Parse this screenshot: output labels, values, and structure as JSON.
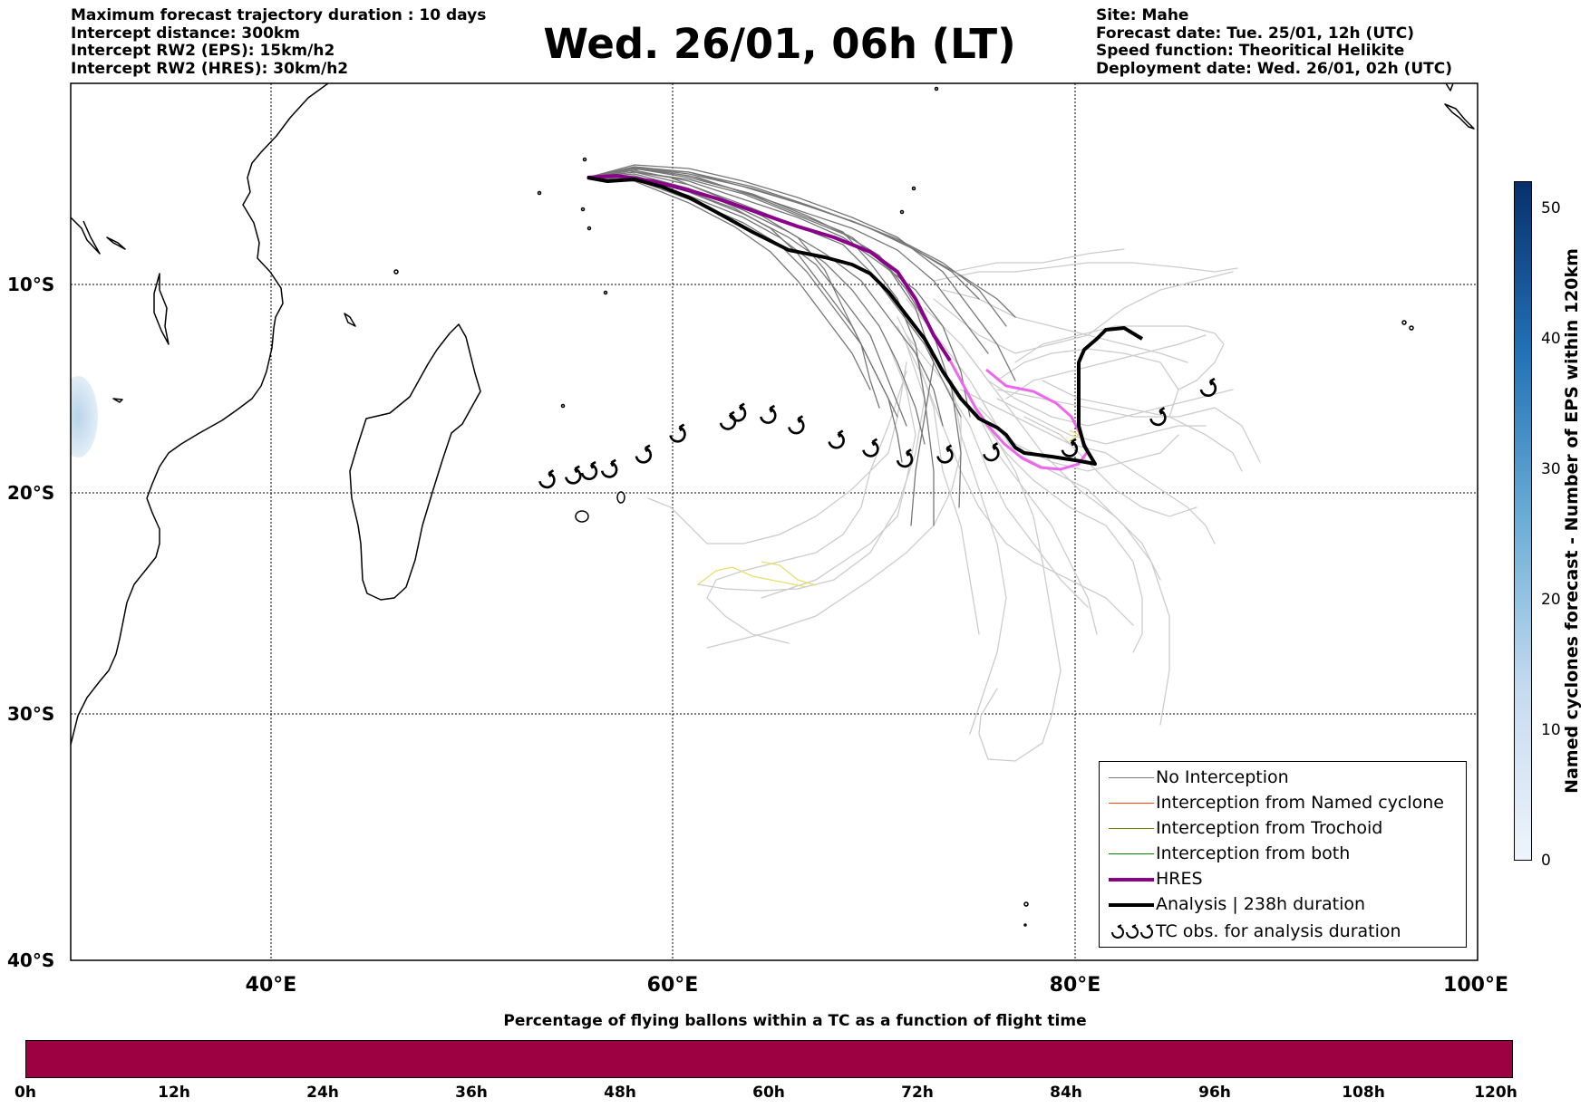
{
  "header": {
    "left_lines": [
      "Maximum forecast trajectory duration : 10 days",
      "Intercept distance: 300km",
      "Intercept RW2 (EPS):  15km/h2",
      "Intercept RW2 (HRES): 30km/h2"
    ],
    "title": "Wed. 26/01, 06h (LT)",
    "right_lines": [
      "Site: Mahe",
      "Forecast date: Tue. 25/01, 12h (UTC)",
      "Speed function: Theoritical Helikite",
      "Deployment date: Wed. 26/01, 02h (UTC)"
    ]
  },
  "map": {
    "extent": {
      "lon": [
        30,
        100
      ],
      "lat": [
        -1,
        -40
      ]
    },
    "lat_labels": [
      "10°S",
      "20°S",
      "30°S",
      "40°S"
    ],
    "lon_labels": [
      "40°E",
      "60°E",
      "80°E",
      "100°E"
    ],
    "hres_color": "#8b008b",
    "analysis_color": "#000000",
    "hres_tail_color": "#ee66ee",
    "eps_color_no_intercept": "#777777",
    "eps_color_light": "#cccccc",
    "tc_observations": [
      [
        53.7,
        -19.4
      ],
      [
        55.0,
        -19.2
      ],
      [
        55.8,
        -19.0
      ],
      [
        56.8,
        -18.9
      ],
      [
        58.5,
        -18.2
      ],
      [
        60.2,
        -17.2
      ],
      [
        62.7,
        -16.6
      ],
      [
        63.2,
        -16.2
      ],
      [
        64.7,
        -16.3
      ],
      [
        66.1,
        -16.8
      ],
      [
        68.1,
        -17.5
      ],
      [
        69.8,
        -17.9
      ],
      [
        71.5,
        -18.4
      ],
      [
        73.5,
        -18.2
      ],
      [
        75.8,
        -18.1
      ],
      [
        79.7,
        -17.9
      ],
      [
        84.1,
        -16.4
      ],
      [
        86.6,
        -15.0
      ]
    ]
  },
  "legend": {
    "items": [
      {
        "label": "No Interception",
        "color": "#777777",
        "width": 1.5
      },
      {
        "label": "Interception from Named cyclone",
        "color": "#ff4500",
        "width": 1.5
      },
      {
        "label": "Interception from Trochoid",
        "color": "#808000",
        "width": 1.5
      },
      {
        "label": "Interception from both",
        "color": "#008000",
        "width": 1.5
      },
      {
        "label": "HRES",
        "color": "#8b008b",
        "width": 4
      },
      {
        "label": "Analysis | 238h duration",
        "color": "#000000",
        "width": 4
      },
      {
        "label": "TC obs. for analysis duration",
        "color": "#000000",
        "width": 0
      }
    ]
  },
  "colorbar_right": {
    "label": "Named cyclones forecast - Number of EPS within 120km",
    "ticks": [
      "0",
      "10",
      "20",
      "30",
      "40",
      "50"
    ],
    "tick_values": [
      0,
      10,
      20,
      30,
      40,
      50
    ],
    "vmax": 52
  },
  "colorbar_bottom": {
    "title": "Percentage of flying ballons within a TC as a function of flight time",
    "ticks": [
      "0h",
      "12h",
      "24h",
      "36h",
      "48h",
      "60h",
      "72h",
      "84h",
      "96h",
      "108h",
      "120h"
    ],
    "color": "#9e0142"
  }
}
